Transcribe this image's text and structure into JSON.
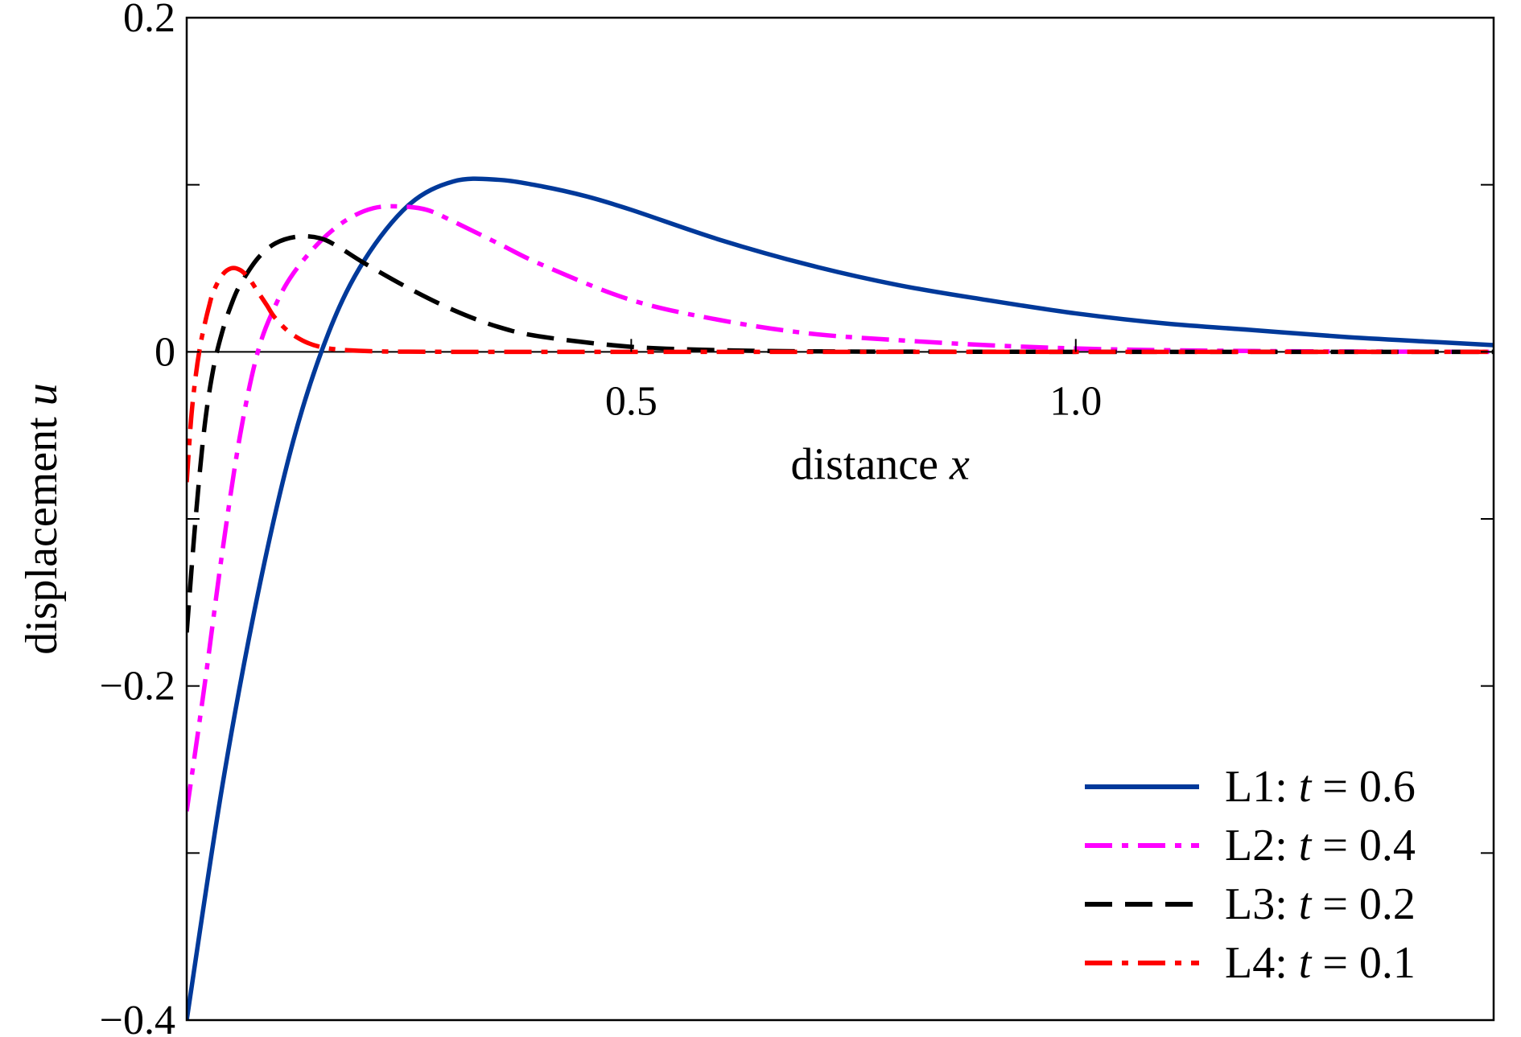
{
  "chart_data": {
    "type": "line",
    "title": "",
    "xlabel": "distance",
    "xlabel_var": "x",
    "ylabel": "displacement",
    "ylabel_var": "u",
    "xlim": [
      0,
      1.47
    ],
    "ylim": [
      -0.4,
      0.2
    ],
    "xticks": [
      {
        "value": 0.5,
        "label": "0.5"
      },
      {
        "value": 1.0,
        "label": "1.0"
      }
    ],
    "yticks": [
      {
        "value": 0.2,
        "label": "0.2"
      },
      {
        "value": 0,
        "label": "0"
      },
      {
        "value": -0.2,
        "label": "−0.2"
      },
      {
        "value": -0.4,
        "label": "−0.4"
      }
    ],
    "minor_yticks": [
      0.1,
      -0.1,
      -0.3
    ],
    "zero_line": true,
    "grid": false,
    "legend_position": "bottom-right",
    "series": [
      {
        "name": "L1",
        "t": "0.6",
        "color": "#00399a",
        "dash": "solid",
        "x": [
          0.0,
          0.04,
          0.08,
          0.12,
          0.16,
          0.2,
          0.25,
          0.3,
          0.35,
          0.4,
          0.45,
          0.5,
          0.6,
          0.7,
          0.8,
          0.9,
          1.0,
          1.1,
          1.2,
          1.3,
          1.4,
          1.47
        ],
        "y": [
          -0.4,
          -0.26,
          -0.145,
          -0.053,
          0.012,
          0.055,
          0.088,
          0.102,
          0.103,
          0.099,
          0.093,
          0.085,
          0.067,
          0.052,
          0.04,
          0.031,
          0.023,
          0.017,
          0.013,
          0.009,
          0.006,
          0.004
        ]
      },
      {
        "name": "L2",
        "t": "0.4",
        "color": "#ff00ff",
        "dash": "dashdot",
        "x": [
          0.0,
          0.02,
          0.04,
          0.06,
          0.08,
          0.1,
          0.12,
          0.15,
          0.18,
          0.21,
          0.24,
          0.27,
          0.3,
          0.35,
          0.4,
          0.5,
          0.6,
          0.7,
          0.8,
          0.9,
          1.0,
          1.1,
          1.2,
          1.3,
          1.47
        ],
        "y": [
          -0.275,
          -0.2,
          -0.12,
          -0.05,
          0.0,
          0.028,
          0.047,
          0.066,
          0.079,
          0.086,
          0.087,
          0.085,
          0.078,
          0.065,
          0.052,
          0.031,
          0.019,
          0.011,
          0.007,
          0.004,
          0.002,
          0.001,
          0.0005,
          0.0002,
          0.0
        ]
      },
      {
        "name": "L3",
        "t": "0.2",
        "color": "#000000",
        "dash": "dashed",
        "x": [
          0.0,
          0.01,
          0.02,
          0.03,
          0.04,
          0.05,
          0.06,
          0.08,
          0.1,
          0.125,
          0.15,
          0.17,
          0.2,
          0.25,
          0.3,
          0.35,
          0.4,
          0.5,
          0.6,
          0.7,
          0.8,
          1.0,
          1.2,
          1.47
        ],
        "y": [
          -0.168,
          -0.1,
          -0.045,
          -0.01,
          0.012,
          0.028,
          0.04,
          0.056,
          0.065,
          0.069,
          0.068,
          0.063,
          0.053,
          0.038,
          0.025,
          0.015,
          0.009,
          0.003,
          0.001,
          0.0003,
          0.0001,
          0.0,
          0.0,
          0.0
        ]
      },
      {
        "name": "L4",
        "t": "0.1",
        "color": "#ff0000",
        "dash": "dashdot",
        "x": [
          0.0,
          0.005,
          0.01,
          0.015,
          0.02,
          0.025,
          0.03,
          0.04,
          0.05,
          0.06,
          0.07,
          0.08,
          0.09,
          0.1,
          0.12,
          0.15,
          0.2,
          0.3,
          0.5,
          1.0,
          1.47
        ],
        "y": [
          -0.078,
          -0.04,
          -0.015,
          0.003,
          0.016,
          0.027,
          0.036,
          0.046,
          0.05,
          0.049,
          0.044,
          0.036,
          0.028,
          0.02,
          0.01,
          0.003,
          0.0005,
          0.0,
          0.0,
          0.0,
          0.0
        ]
      }
    ]
  }
}
